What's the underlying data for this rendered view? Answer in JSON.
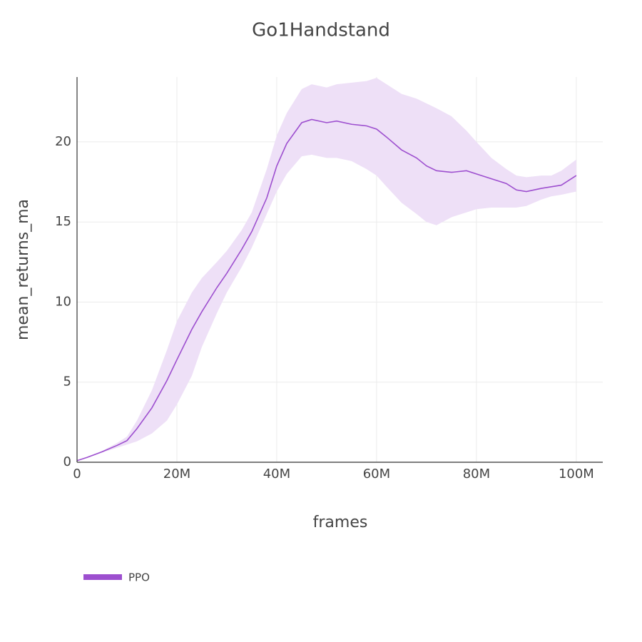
{
  "chart_data": {
    "type": "line",
    "title": "Go1Handstand",
    "x_label": "frames",
    "y_label": "mean_returns_ma",
    "x": [
      0,
      2000000,
      5000000,
      8000000,
      10000000,
      12000000,
      15000000,
      18000000,
      20000000,
      23000000,
      25000000,
      28000000,
      30000000,
      33000000,
      35000000,
      38000000,
      40000000,
      42000000,
      45000000,
      47000000,
      50000000,
      52000000,
      55000000,
      58000000,
      60000000,
      62000000,
      65000000,
      68000000,
      70000000,
      72000000,
      75000000,
      78000000,
      80000000,
      83000000,
      86000000,
      88000000,
      90000000,
      93000000,
      95000000,
      97000000,
      100000000
    ],
    "series": [
      {
        "name": "PPO",
        "color": "#9d4fcf",
        "band_color": "#eee0f7",
        "values": [
          0.1,
          0.3,
          0.65,
          1.05,
          1.35,
          2.1,
          3.4,
          5.1,
          6.4,
          8.3,
          9.4,
          10.9,
          11.8,
          13.3,
          14.4,
          16.5,
          18.5,
          19.9,
          21.2,
          21.4,
          21.2,
          21.3,
          21.1,
          21.0,
          20.8,
          20.3,
          19.5,
          19.0,
          18.5,
          18.2,
          18.1,
          18.2,
          18.0,
          17.7,
          17.4,
          17.0,
          16.9,
          17.1,
          17.2,
          17.3,
          17.9
        ],
        "upper": [
          0.1,
          0.3,
          0.7,
          1.2,
          1.6,
          2.6,
          4.5,
          7,
          8.8,
          10.6,
          11.5,
          12.5,
          13.2,
          14.5,
          15.6,
          18.3,
          20.4,
          21.8,
          23.3,
          23.6,
          23.4,
          23.6,
          23.7,
          23.8,
          24.0,
          23.6,
          23.0,
          22.7,
          22.4,
          22.1,
          21.6,
          20.7,
          20.0,
          19.0,
          18.3,
          17.9,
          17.8,
          17.9,
          17.9,
          18.2,
          18.9
        ],
        "lower": [
          0.1,
          0.3,
          0.6,
          0.9,
          1.1,
          1.3,
          1.8,
          2.6,
          3.6,
          5.4,
          7.2,
          9.3,
          10.6,
          12.2,
          13.4,
          15.5,
          16.9,
          18.0,
          19.1,
          19.2,
          19.0,
          19.0,
          18.8,
          18.3,
          17.9,
          17.2,
          16.2,
          15.5,
          15.0,
          14.8,
          15.3,
          15.6,
          15.8,
          15.9,
          15.9,
          15.9,
          16.0,
          16.4,
          16.6,
          16.7,
          16.9
        ]
      }
    ],
    "xlim": [
      0,
      105300000
    ],
    "xticks": [
      0,
      {
        "value": 20000000,
        "label": "20M"
      },
      {
        "value": 40000000,
        "label": "40M"
      },
      {
        "value": 60000000,
        "label": "60M"
      },
      {
        "value": 80000000,
        "label": "80M"
      },
      {
        "value": 100000000,
        "label": "100M"
      }
    ],
    "ylim": [
      0,
      24.05
    ],
    "yticks": [
      0,
      5,
      10,
      15,
      20
    ],
    "grid": true,
    "legend_position": "bottom-left"
  }
}
